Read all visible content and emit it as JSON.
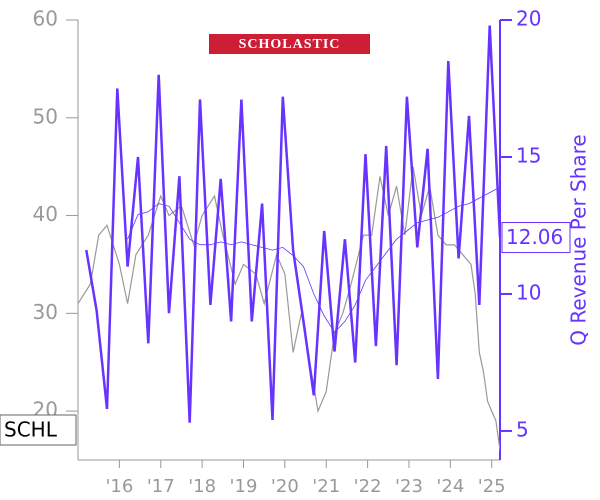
{
  "chart_data": {
    "type": "line",
    "logo": "SCHOLASTIC",
    "ticker": "SCHL",
    "y2_label": "Q Revenue Per Share",
    "xlim": [
      2015.0,
      2025.2
    ],
    "xticks": [
      {
        "value": 2016,
        "label": "'16"
      },
      {
        "value": 2017,
        "label": "'17"
      },
      {
        "value": 2018,
        "label": "'18"
      },
      {
        "value": 2019,
        "label": "'19"
      },
      {
        "value": 2020,
        "label": "'20"
      },
      {
        "value": 2021,
        "label": "'21"
      },
      {
        "value": 2022,
        "label": "'22"
      },
      {
        "value": 2023,
        "label": "'23"
      },
      {
        "value": 2024,
        "label": "'24"
      },
      {
        "value": 2025,
        "label": "'25"
      }
    ],
    "ylim": [
      15,
      60
    ],
    "yticks": [
      20,
      30,
      40,
      50,
      60
    ],
    "y2lim": [
      3.94,
      20
    ],
    "y2ticks": [
      5,
      10,
      15,
      20
    ],
    "series": [
      {
        "color": "#999999",
        "axis": "y",
        "x": [
          2015.0,
          2015.3,
          2015.5,
          2015.7,
          2016.0,
          2016.2,
          2016.4,
          2016.7,
          2017.0,
          2017.2,
          2017.5,
          2017.8,
          2018.0,
          2018.3,
          2018.5,
          2018.8,
          2019.0,
          2019.3,
          2019.5,
          2019.8,
          2020.0,
          2020.2,
          2020.4,
          2020.6,
          2020.8,
          2021.0,
          2021.2,
          2021.4,
          2021.6,
          2021.9,
          2022.1,
          2022.3,
          2022.5,
          2022.7,
          2022.9,
          2023.1,
          2023.3,
          2023.5,
          2023.7,
          2023.9,
          2024.1,
          2024.3,
          2024.5,
          2024.6,
          2024.7,
          2024.8,
          2024.9,
          2025.0,
          2025.1,
          2025.2
        ],
        "values": [
          31,
          33,
          38,
          39,
          35,
          31,
          36,
          38,
          42,
          40,
          41,
          37,
          40,
          42,
          38,
          33,
          35,
          34,
          31,
          36,
          34,
          26,
          30,
          25,
          20,
          22,
          28,
          30,
          33,
          38,
          38,
          44,
          40,
          43,
          38,
          45,
          40,
          43,
          38,
          37,
          37,
          36,
          35,
          32,
          26,
          24,
          21,
          20,
          19,
          16
        ]
      },
      {
        "color": "#6633ff",
        "axis": "y2",
        "x": [
          2015.2,
          2015.45,
          2015.7,
          2015.95,
          2016.2,
          2016.45,
          2016.7,
          2016.95,
          2017.2,
          2017.45,
          2017.7,
          2017.95,
          2018.2,
          2018.45,
          2018.7,
          2018.95,
          2019.2,
          2019.45,
          2019.7,
          2019.95,
          2020.2,
          2020.45,
          2020.7,
          2020.95,
          2021.2,
          2021.45,
          2021.7,
          2021.95,
          2022.2,
          2022.45,
          2022.7,
          2022.95,
          2023.2,
          2023.45,
          2023.7,
          2023.95,
          2024.2,
          2024.45,
          2024.7,
          2024.95,
          2025.2
        ],
        "values": [
          11.6,
          9.4,
          5.8,
          17.5,
          11.0,
          15.0,
          8.2,
          18.0,
          9.3,
          14.3,
          5.3,
          17.1,
          9.6,
          14.2,
          9.0,
          17.1,
          9.0,
          13.3,
          5.4,
          17.2,
          11.6,
          9.0,
          6.3,
          12.3,
          7.9,
          12.0,
          7.5,
          15.1,
          8.1,
          15.4,
          7.4,
          17.2,
          11.7,
          15.3,
          6.9,
          18.5,
          11.3,
          16.5,
          9.6,
          19.8,
          12.06
        ]
      },
      {
        "color": "#6633ff",
        "axis": "y2",
        "x": [
          2016.2,
          2016.45,
          2016.7,
          2016.95,
          2017.2,
          2017.45,
          2017.7,
          2017.95,
          2018.2,
          2018.45,
          2018.7,
          2018.95,
          2019.2,
          2019.45,
          2019.7,
          2019.95,
          2020.2,
          2020.45,
          2020.7,
          2020.95,
          2021.2,
          2021.45,
          2021.7,
          2021.95,
          2022.2,
          2022.45,
          2022.7,
          2022.95,
          2023.2,
          2023.45,
          2023.7,
          2023.95,
          2024.2,
          2024.45,
          2024.7,
          2024.95,
          2025.2
        ],
        "values": [
          12.0,
          12.9,
          13.0,
          13.3,
          13.2,
          12.6,
          12.0,
          11.8,
          11.8,
          11.9,
          11.8,
          11.9,
          11.8,
          11.7,
          11.6,
          11.7,
          11.4,
          11.0,
          10.0,
          9.2,
          8.6,
          9.0,
          9.6,
          10.5,
          11.0,
          11.5,
          12.0,
          12.3,
          12.6,
          12.7,
          12.8,
          13.0,
          13.2,
          13.3,
          13.5,
          13.7,
          13.9
        ]
      }
    ]
  }
}
